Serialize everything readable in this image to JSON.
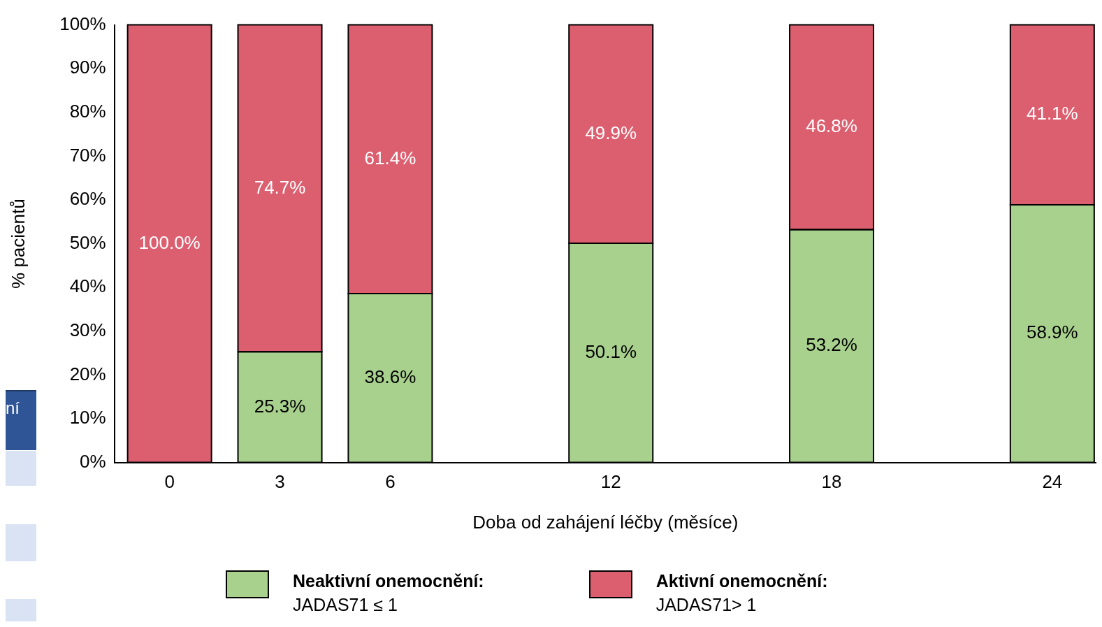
{
  "chart_data": {
    "type": "bar",
    "stacked": true,
    "xlabel": "Doba od zahájení léčby (měsíce)",
    "ylabel": "% pacientů",
    "x": [
      0,
      3,
      6,
      12,
      18,
      24
    ],
    "xlim": [
      -1.5,
      25.2
    ],
    "xticks": [
      0,
      3,
      6,
      12,
      18,
      24
    ],
    "ylim": [
      0,
      100
    ],
    "yticks": [
      {
        "value": 0,
        "label": "0%"
      },
      {
        "value": 10,
        "label": "10%"
      },
      {
        "value": 20,
        "label": "20%"
      },
      {
        "value": 30,
        "label": "30%"
      },
      {
        "value": 40,
        "label": "40%"
      },
      {
        "value": 50,
        "label": "50%"
      },
      {
        "value": 60,
        "label": "60%"
      },
      {
        "value": 70,
        "label": "70%"
      },
      {
        "value": 80,
        "label": "80%"
      },
      {
        "value": 90,
        "label": "90%"
      },
      {
        "value": 100,
        "label": "100%"
      }
    ],
    "series": [
      {
        "name": "Neaktivní onemocnění:\nJADAS71 ≤ 1",
        "color": "#a9d18e",
        "values": [
          null,
          25.3,
          38.6,
          50.1,
          53.2,
          58.9
        ],
        "value_labels": [
          null,
          "25.3%",
          "38.6%",
          "50.1%",
          "53.2%",
          "58.9%"
        ]
      },
      {
        "name": "Aktivní onemocnění:\nJADAS71> 1",
        "color": "#dc5f70",
        "values": [
          100,
          74.7,
          61.4,
          49.9,
          46.8,
          41.1
        ],
        "value_labels": [
          "100.0%",
          "74.7%",
          "61.4%",
          "49.9%",
          "46.8%",
          "41.1%"
        ]
      }
    ],
    "grid": false,
    "legend": "bottom",
    "annotations": [
      "ní"
    ]
  }
}
